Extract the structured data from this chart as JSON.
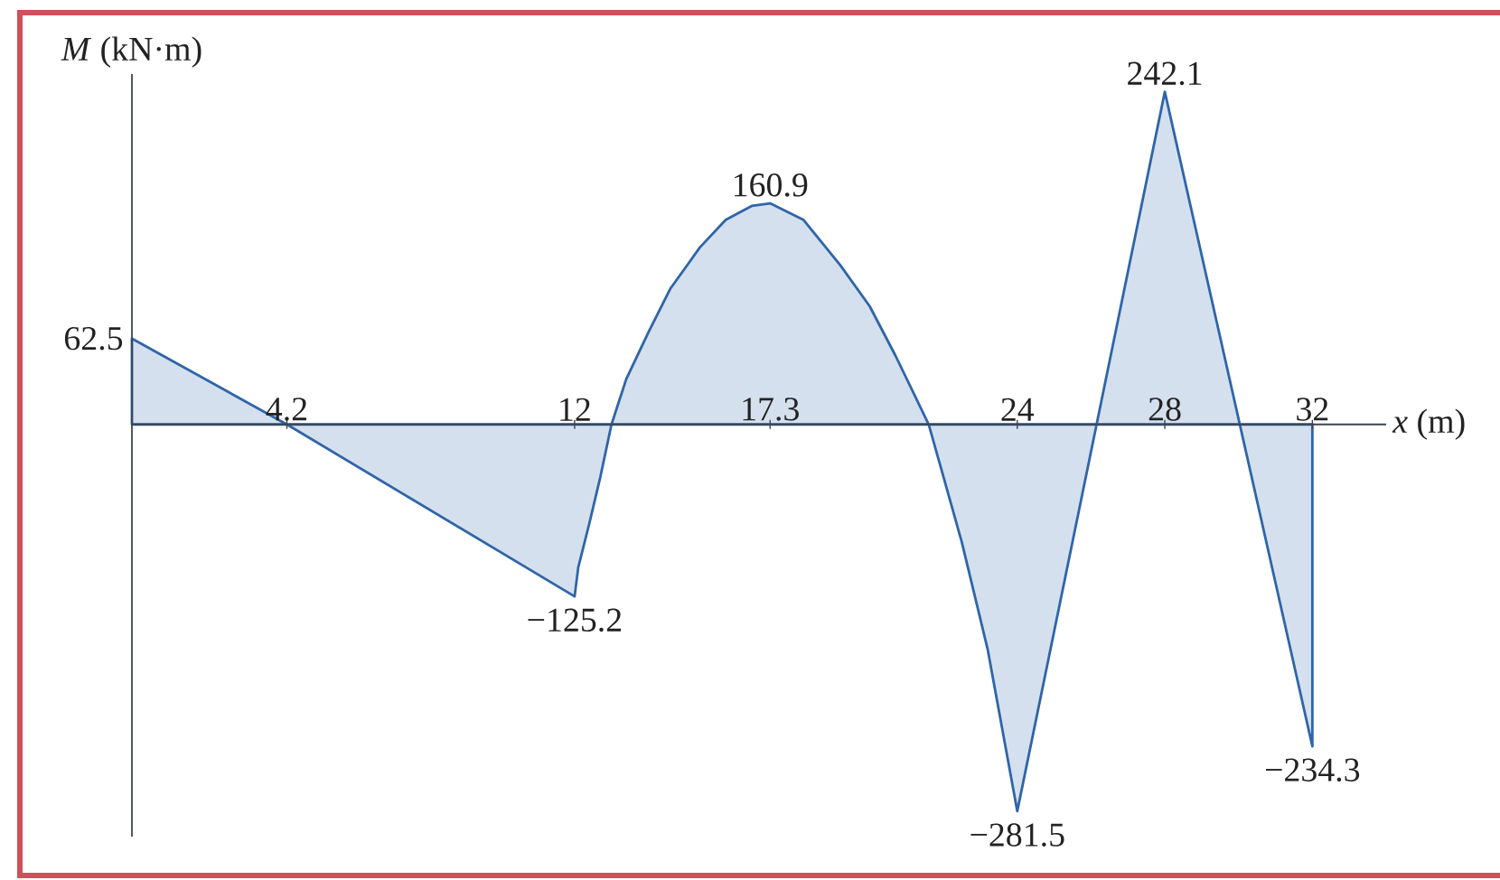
{
  "chart_data": {
    "type": "area",
    "xlabel": "*x* (m)",
    "ylabel": "*M* (kN·m)",
    "x": [
      0,
      4.2,
      12,
      12.1,
      12.4,
      12.7,
      13,
      13.4,
      14,
      14.6,
      15.4,
      16.1,
      16.8,
      17.3,
      18.2,
      19.2,
      20,
      20.7,
      21.6,
      22.5,
      23.2,
      24,
      28,
      32
    ],
    "series": [
      {
        "color": "#2f65a8",
        "values": [
          62.5,
          0,
          -125.2,
          -104,
          -72,
          -38,
          0,
          33,
          67,
          99,
          129,
          149,
          159,
          160.9,
          149,
          116,
          86,
          50,
          0,
          -86,
          -164,
          -281.5,
          242.1,
          -234.3
        ],
        "value_labels": [
          "62.5",
          null,
          "−125.2",
          null,
          null,
          null,
          null,
          null,
          null,
          null,
          null,
          null,
          null,
          "160.9",
          null,
          null,
          null,
          null,
          null,
          null,
          null,
          "−281.5",
          "242.1",
          "−234.3"
        ]
      }
    ],
    "xlim": [
      0,
      34
    ],
    "ylim": [
      -300,
      255
    ],
    "xticks": [
      4.2,
      12,
      17.3,
      24,
      28,
      32
    ],
    "tick_labels": "x"
  }
}
